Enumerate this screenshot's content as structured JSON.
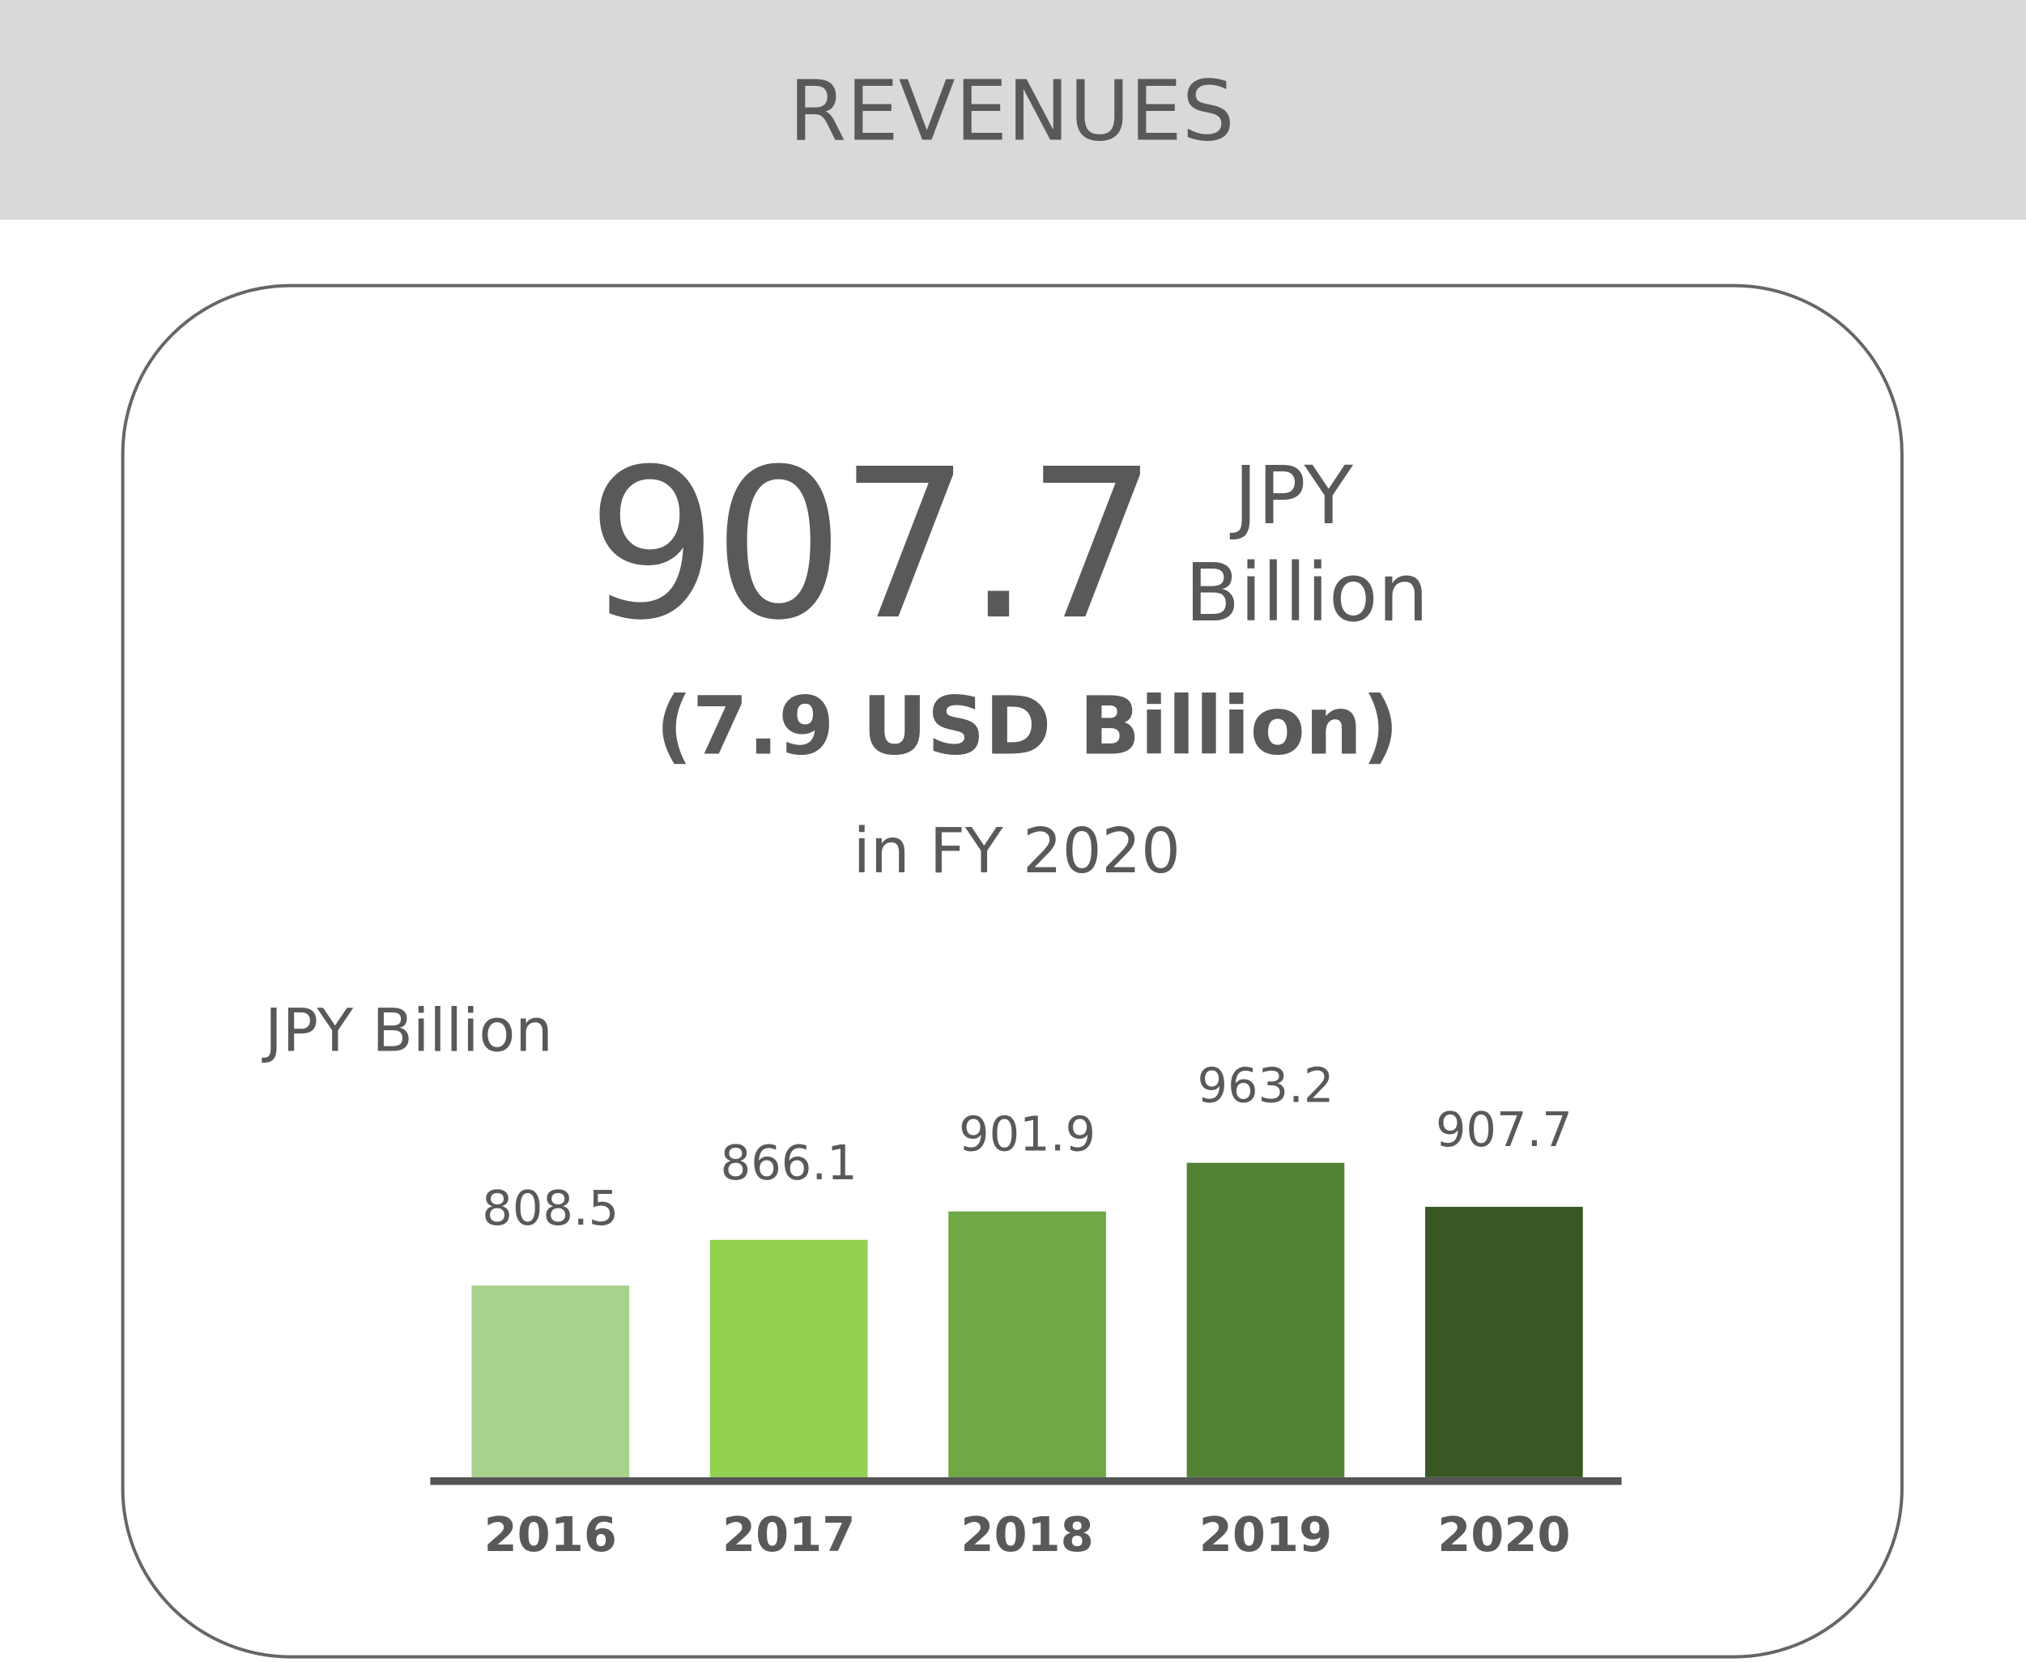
{
  "header": {
    "title": "REVENUES"
  },
  "chart_data": {
    "type": "bar",
    "headline": "907.7",
    "headline_unit": [
      "JPY",
      "Billion"
    ],
    "subtitle": "(7.9 USD Billion)",
    "period": "in FY 2020",
    "y_label": "JPY Billion",
    "categories": [
      "2016",
      "2017",
      "2018",
      "2019",
      "2020"
    ],
    "values": [
      808.5,
      866.1,
      901.9,
      963.2,
      907.7
    ],
    "colors": [
      "#a9d18e",
      "#92d050",
      "#70a845",
      "#548235",
      "#385723"
    ],
    "ylim": [
      567,
      1100
    ]
  }
}
